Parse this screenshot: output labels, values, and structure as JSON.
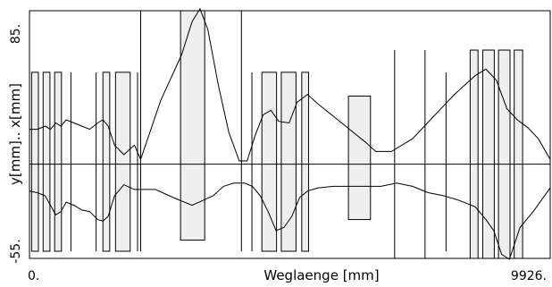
{
  "chart_data": {
    "type": "line",
    "title": "",
    "xlabel": "Weglaenge [mm]",
    "ylabel": "y[mm].. x[mm]",
    "xlim": [
      0,
      9926
    ],
    "ylim": [
      -55,
      85
    ],
    "x_ticks": [
      "0.",
      "9926."
    ],
    "y_ticks": [
      "85.",
      "-55."
    ],
    "grid": false,
    "baseline": 0,
    "elements": [
      {
        "kind": "quad",
        "s": 40,
        "w": 130,
        "top": 58,
        "bottom": -55
      },
      {
        "kind": "quad",
        "s": 260,
        "w": 130,
        "top": 58,
        "bottom": -55
      },
      {
        "kind": "quad",
        "s": 480,
        "w": 130,
        "top": 58,
        "bottom": -55
      },
      {
        "kind": "line",
        "s": 790,
        "top": 58,
        "bottom": -55
      },
      {
        "kind": "line",
        "s": 1270,
        "top": 58,
        "bottom": -55
      },
      {
        "kind": "quad",
        "s": 1400,
        "w": 130,
        "top": 58,
        "bottom": -55
      },
      {
        "kind": "quad",
        "s": 1640,
        "w": 280,
        "top": 58,
        "bottom": -55
      },
      {
        "kind": "line",
        "s": 2060,
        "top": 58,
        "bottom": -55
      },
      {
        "kind": "line",
        "s": 2120,
        "top": 118,
        "bottom": -55
      },
      {
        "kind": "quad",
        "s": 2880,
        "w": 460,
        "top": 112,
        "bottom": -48
      },
      {
        "kind": "line",
        "s": 4040,
        "top": 118,
        "bottom": -55
      },
      {
        "kind": "line",
        "s": 4240,
        "top": 58,
        "bottom": -55
      },
      {
        "kind": "quad",
        "s": 4430,
        "w": 280,
        "top": 58,
        "bottom": -55
      },
      {
        "kind": "quad",
        "s": 4800,
        "w": 280,
        "top": 58,
        "bottom": -55
      },
      {
        "kind": "quad",
        "s": 5190,
        "w": 130,
        "top": 58,
        "bottom": -55
      },
      {
        "kind": "quad",
        "s": 6080,
        "w": 420,
        "top": 43,
        "bottom": -35
      },
      {
        "kind": "line",
        "s": 6960,
        "top": 72,
        "bottom": -69
      },
      {
        "kind": "line",
        "s": 7540,
        "top": 72,
        "bottom": -69
      },
      {
        "kind": "line",
        "s": 7940,
        "top": 58,
        "bottom": -55
      },
      {
        "kind": "quad",
        "s": 8400,
        "w": 150,
        "top": 72,
        "bottom": -69
      },
      {
        "kind": "quad",
        "s": 8640,
        "w": 220,
        "top": 72,
        "bottom": -69
      },
      {
        "kind": "quad",
        "s": 8940,
        "w": 220,
        "top": 72,
        "bottom": -69
      },
      {
        "kind": "quad",
        "s": 9240,
        "w": 160,
        "top": 72,
        "bottom": -69
      }
    ],
    "series": [
      {
        "x": [
          0,
          150,
          300,
          400,
          500,
          600,
          700,
          850,
          1000,
          1150,
          1300,
          1400,
          1500,
          1620,
          1800,
          2000,
          2120,
          2500,
          2900,
          3100,
          3250,
          3400,
          3600,
          3800,
          4000,
          4150,
          4300,
          4450,
          4600,
          4750,
          4950,
          5100,
          5300,
          5500,
          5800,
          6100,
          6400,
          6600,
          6900,
          7300,
          7700,
          8100,
          8500,
          8700,
          8900,
          9100,
          9300,
          9500,
          9700,
          9926
        ],
        "y": [
          22,
          22,
          24,
          22,
          26,
          24,
          28,
          26,
          24,
          22,
          26,
          28,
          24,
          12,
          6,
          12,
          3,
          40,
          69,
          90,
          98,
          85,
          50,
          20,
          2,
          2,
          18,
          31,
          34,
          27,
          26,
          39,
          44,
          38,
          30,
          22,
          14,
          8,
          8,
          16,
          30,
          44,
          56,
          60,
          53,
          35,
          28,
          23,
          16,
          3
        ]
      },
      {
        "x": [
          0,
          150,
          300,
          400,
          500,
          600,
          700,
          850,
          1000,
          1150,
          1300,
          1400,
          1500,
          1620,
          1800,
          2000,
          2120,
          2400,
          2800,
          3100,
          3300,
          3500,
          3700,
          3900,
          4100,
          4250,
          4400,
          4550,
          4700,
          4850,
          5000,
          5150,
          5300,
          5500,
          5800,
          6100,
          6400,
          6700,
          7000,
          7300,
          7600,
          7900,
          8200,
          8500,
          8700,
          8850,
          9000,
          9150,
          9350,
          9600,
          9926
        ],
        "y": [
          -17,
          -18,
          -20,
          -26,
          -32,
          -30,
          -24,
          -26,
          -29,
          -30,
          -35,
          -36,
          -33,
          -20,
          -13,
          -16,
          -16,
          -16,
          -22,
          -26,
          -23,
          -20,
          -14,
          -12,
          -12,
          -14,
          -20,
          -30,
          -42,
          -40,
          -33,
          -21,
          -17,
          -15,
          -14,
          -14,
          -14,
          -14,
          -12,
          -14,
          -18,
          -20,
          -23,
          -27,
          -35,
          -42,
          -57,
          -60,
          -40,
          -30,
          -15
        ]
      }
    ]
  }
}
